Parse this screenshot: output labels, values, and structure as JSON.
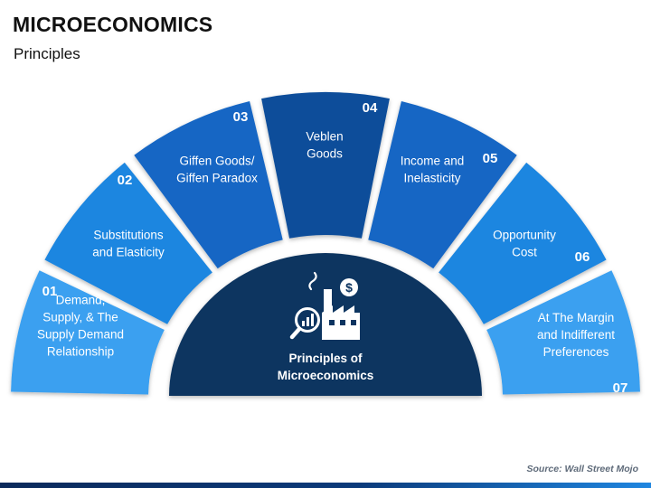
{
  "title": "MICROECONOMICS",
  "subtitle": "Principles",
  "center": {
    "label_lines": [
      "Principles of",
      "Microeconomics"
    ],
    "icon": "factory-analytics-icon"
  },
  "segments": [
    {
      "number": "01",
      "label_lines": [
        "Demand,",
        "Supply, & The",
        "Supply Demand",
        "Relationship"
      ],
      "color": "#3aa0f0"
    },
    {
      "number": "02",
      "label_lines": [
        "Substitutions",
        "and Elasticity"
      ],
      "color": "#1f86e0"
    },
    {
      "number": "03",
      "label_lines": [
        "Giffen Goods/",
        "Giffen Paradox"
      ],
      "color": "#1466c4"
    },
    {
      "number": "04",
      "label_lines": [
        "Veblen",
        "Goods"
      ],
      "color": "#0d4e9a"
    },
    {
      "number": "05",
      "label_lines": [
        "Income and",
        "Inelasticity"
      ],
      "color": "#1466c4"
    },
    {
      "number": "06",
      "label_lines": [
        "Opportunity",
        "Cost"
      ],
      "color": "#1f86e0"
    },
    {
      "number": "07",
      "label_lines": [
        "At The Margin",
        "and Indifferent",
        "Preferences"
      ],
      "color": "#3aa0f0"
    }
  ],
  "center_color": "#0c3460",
  "source": "Source: Wall Street Mojo"
}
